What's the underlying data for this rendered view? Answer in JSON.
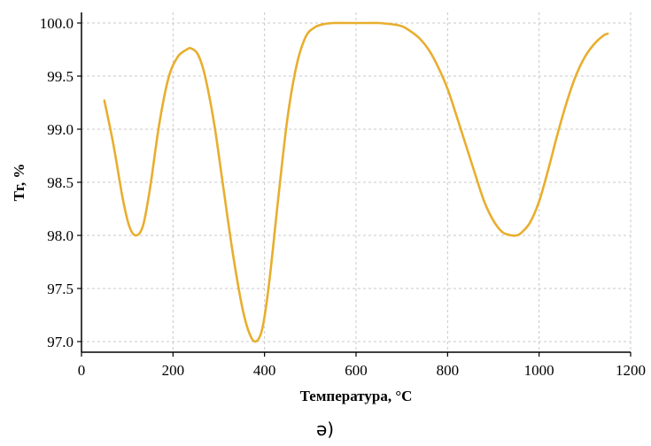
{
  "chart_data": {
    "type": "line",
    "title": "",
    "xlabel": "Температура, °С",
    "ylabel": "Тг, %",
    "xlim": [
      0,
      1200
    ],
    "ylim": [
      96.9,
      100.1
    ],
    "x_ticks": [
      0,
      200,
      400,
      600,
      800,
      1000,
      1200
    ],
    "y_ticks": [
      97.0,
      97.5,
      98.0,
      98.5,
      99.0,
      99.5,
      100.0
    ],
    "y_tick_labels": [
      "97.0",
      "97.5",
      "98.0",
      "98.5",
      "99.0",
      "99.5",
      "100.0"
    ],
    "grid": true,
    "line_color": "#E8AE2E",
    "series": [
      {
        "x": [
          50,
          70,
          90,
          105,
          120,
          135,
          150,
          170,
          190,
          210,
          230,
          240,
          255,
          270,
          290,
          310,
          330,
          350,
          365,
          380,
          395,
          410,
          430,
          450,
          470,
          490,
          510,
          530,
          550,
          575,
          600,
          625,
          650,
          675,
          700,
          720,
          740,
          760,
          780,
          800,
          820,
          840,
          860,
          880,
          900,
          920,
          940,
          950,
          960,
          980,
          1000,
          1020,
          1040,
          1060,
          1080,
          1100,
          1120,
          1140,
          1150
        ],
        "y": [
          99.27,
          98.85,
          98.35,
          98.08,
          98.0,
          98.1,
          98.45,
          99.05,
          99.48,
          99.68,
          99.75,
          99.76,
          99.7,
          99.5,
          99.05,
          98.45,
          97.85,
          97.35,
          97.1,
          97.0,
          97.12,
          97.55,
          98.35,
          99.1,
          99.6,
          99.87,
          99.96,
          99.99,
          100.0,
          100.0,
          100.0,
          100.0,
          100.0,
          99.99,
          99.97,
          99.92,
          99.85,
          99.74,
          99.58,
          99.38,
          99.12,
          98.85,
          98.58,
          98.32,
          98.14,
          98.03,
          98.0,
          98.0,
          98.02,
          98.12,
          98.32,
          98.62,
          98.95,
          99.25,
          99.5,
          99.68,
          99.8,
          99.88,
          99.9
        ]
      }
    ]
  },
  "figure": {
    "caption": "ә)"
  }
}
